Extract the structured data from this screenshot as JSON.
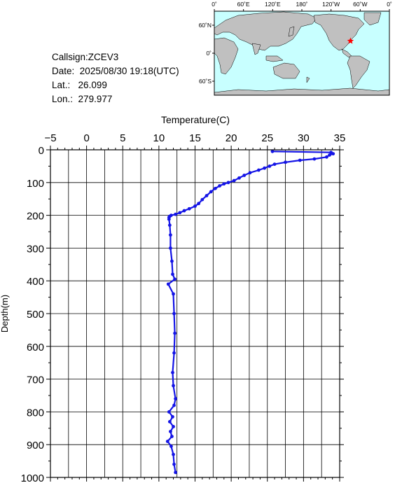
{
  "info": {
    "callsign": "Callsign:ZCEV3",
    "date_label": "Date:",
    "date_value": "2025/08/30 19:18(UTC)",
    "lat_label": "Lat.:",
    "lat_value": "26.099",
    "lon_label": "Lon.:",
    "lon_value": "279.977"
  },
  "map": {
    "top_labels": [
      "0˚",
      "60˚E",
      "120˚E",
      "180˚",
      "120˚W",
      "60˚W",
      "0˚"
    ],
    "lat_labels": [
      "60˚N",
      "0˚",
      "60˚S"
    ],
    "marker": {
      "lat": 26.099,
      "lon": 279.977,
      "color": "#ff0000"
    },
    "ocean_color": "#c8ffff",
    "land_color": "#c0c0c0"
  },
  "chart_data": {
    "type": "line",
    "title": "",
    "xlabel": "Temperature(C)",
    "ylabel": "Depth(m)",
    "xlim": [
      -5,
      35
    ],
    "ylim": [
      1000,
      0
    ],
    "x_ticks": [
      -5,
      0,
      5,
      10,
      15,
      20,
      25,
      30,
      35
    ],
    "y_ticks": [
      0,
      100,
      200,
      300,
      400,
      500,
      600,
      700,
      800,
      900,
      1000
    ],
    "grid": true,
    "color": "#1414e6",
    "series": [
      {
        "depth": [
          5,
          8,
          12,
          16,
          22,
          28,
          32,
          38,
          44,
          50,
          56,
          62,
          70,
          78,
          86,
          94,
          100,
          104,
          110,
          118,
          128,
          140,
          152,
          164,
          172,
          180,
          186,
          192,
          197,
          200,
          203,
          206,
          212,
          230,
          260,
          300,
          340,
          380,
          395,
          410,
          440,
          500,
          560,
          620,
          680,
          720,
          760,
          780,
          800,
          815,
          830,
          845,
          860,
          875,
          890,
          905,
          930,
          960,
          985
        ],
        "temperature": [
          25.7,
          33.8,
          34.1,
          33.6,
          33.2,
          31.5,
          29.5,
          27.5,
          26.0,
          25.3,
          24.6,
          23.8,
          22.6,
          21.8,
          21.1,
          20.4,
          19.6,
          19.0,
          18.4,
          17.8,
          17.2,
          16.6,
          16.0,
          15.5,
          15.0,
          14.2,
          13.5,
          12.9,
          12.3,
          11.7,
          11.5,
          11.4,
          11.4,
          11.5,
          11.6,
          11.6,
          11.8,
          11.9,
          12.2,
          11.3,
          12.0,
          12.1,
          12.2,
          12.1,
          11.9,
          12.0,
          12.3,
          12.1,
          11.4,
          11.9,
          11.5,
          12.0,
          11.6,
          11.8,
          11.2,
          11.7,
          12.0,
          12.1,
          12.3
        ]
      }
    ]
  }
}
